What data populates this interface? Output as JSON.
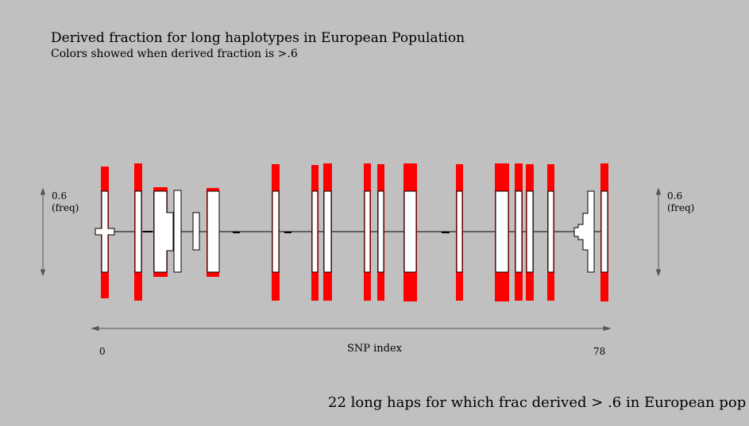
{
  "title": "Derived fraction for long haplotypes in European Population",
  "subtitle": "Colors showed when derived fraction is >.6",
  "left_axis_label": "0.6\n(freq)",
  "right_axis_label": "0.6\n(freq)",
  "x_axis": {
    "label": "SNP index",
    "min_label": "0",
    "max_label": "78"
  },
  "footer": "22 long haps for which frac derived > .6 in European pop",
  "colors": {
    "background": "#c0c0c0",
    "highlight": "#ff0000",
    "box": "#ffffff",
    "line": "#000000"
  },
  "chart_data": {
    "type": "diagram",
    "x_range": [
      0,
      78
    ],
    "y_label": "0.6 (freq)",
    "highlight_threshold": 0.6,
    "long_haps_count": 22
  }
}
